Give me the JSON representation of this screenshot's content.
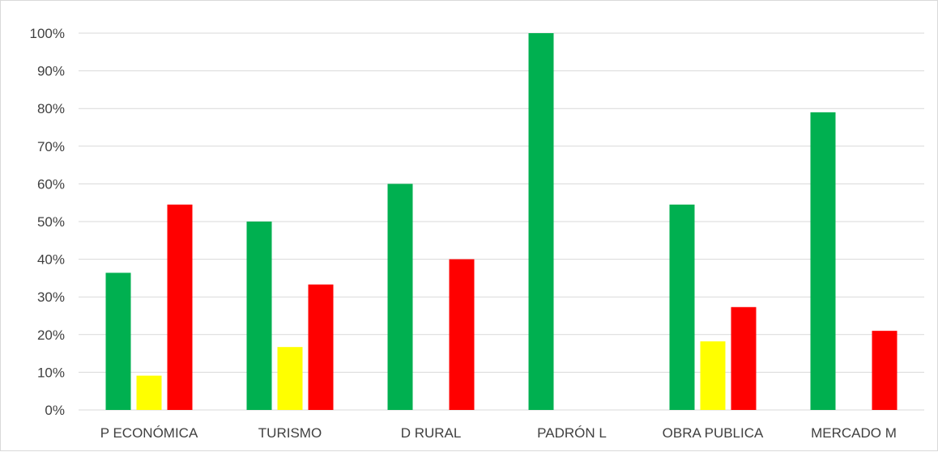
{
  "chart_data": {
    "type": "bar",
    "categories": [
      "P ECONÓMICA",
      "TURISMO",
      "D RURAL",
      "PADRÓN L",
      "OBRA PUBLICA",
      "MERCADO M"
    ],
    "series": [
      {
        "color": "#00b050",
        "values": [
          36.4,
          50,
          60,
          100,
          54.5,
          79
        ]
      },
      {
        "color": "#ffff00",
        "values": [
          9.1,
          16.7,
          0,
          0,
          18.2,
          0
        ]
      },
      {
        "color": "#ff0000",
        "values": [
          54.5,
          33.3,
          40,
          0,
          27.3,
          21
        ]
      }
    ],
    "ylim": [
      0,
      100
    ],
    "yticks": [
      "0%",
      "10%",
      "20%",
      "30%",
      "40%",
      "50%",
      "60%",
      "70%",
      "80%",
      "90%",
      "100%"
    ],
    "grid": true,
    "legend": "none",
    "gridline_color": "#d9d9d9"
  }
}
